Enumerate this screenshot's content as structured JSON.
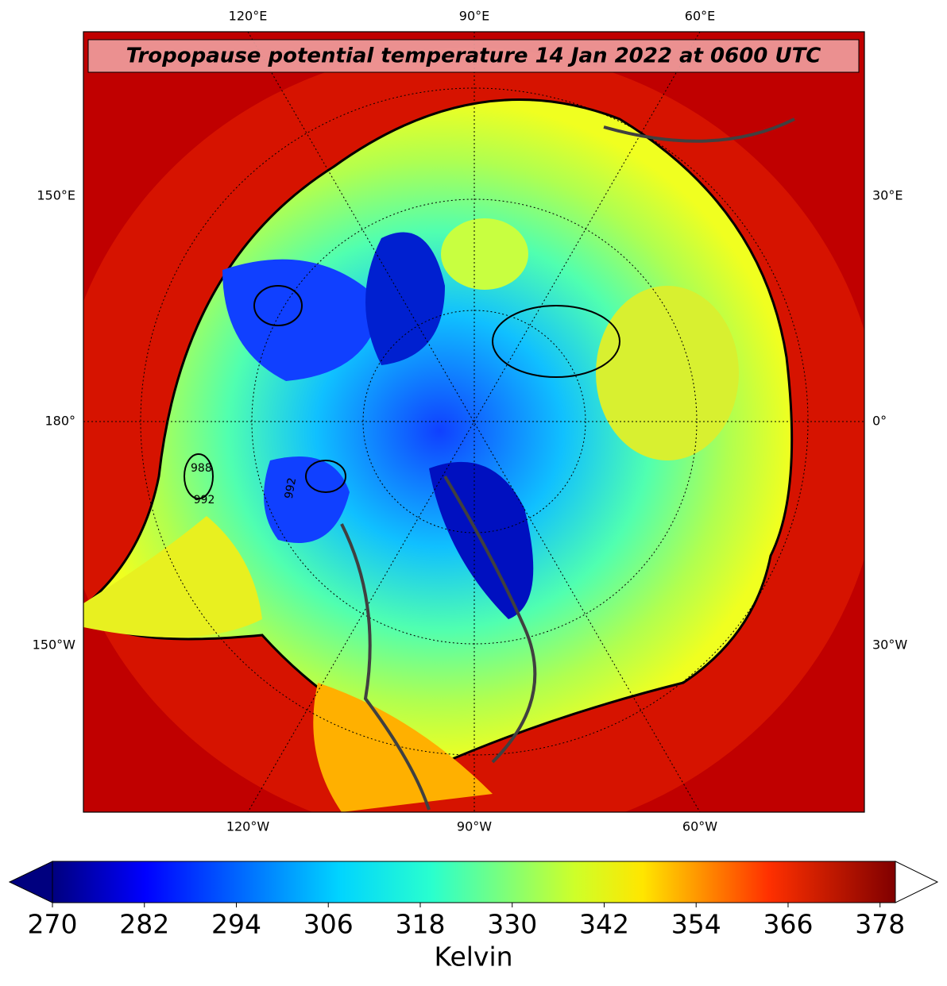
{
  "title": "Tropopause potential temperature 14 Jan 2022 at 0600 UTC",
  "map": {
    "top_labels": [
      "120°E",
      "90°E",
      "60°E"
    ],
    "bottom_labels": [
      "120°W",
      "90°W",
      "60°W"
    ],
    "left_labels": [
      "150°E",
      "180°",
      "150°W"
    ],
    "right_labels": [
      "30°E",
      "0°",
      "30°W"
    ],
    "contour_labels": [
      "988",
      "992",
      "992"
    ]
  },
  "colorbar": {
    "label": "Kelvin",
    "lim": [
      270,
      380
    ],
    "ticks": [
      270,
      282,
      294,
      306,
      318,
      330,
      342,
      354,
      366,
      378
    ]
  }
}
